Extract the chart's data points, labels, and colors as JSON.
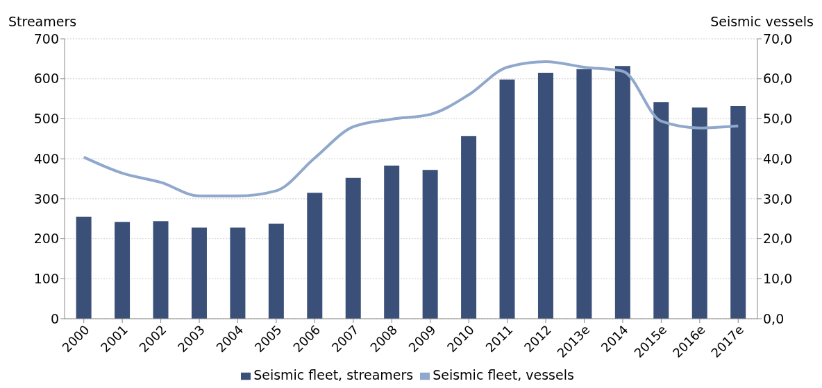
{
  "chart_data": {
    "type": "bar",
    "ylabel": "Streamers",
    "y2label": "Seismic vessels",
    "categories": [
      "2000",
      "2001",
      "2002",
      "2003",
      "2004",
      "2005",
      "2006",
      "2007",
      "2008",
      "2009",
      "2010",
      "2011",
      "2012",
      "2013e",
      "2014",
      "2015e",
      "2016e",
      "2017e"
    ],
    "series": [
      {
        "name": "Seismic fleet, streamers",
        "color": "#3a5078",
        "values": [
          255,
          242,
          244,
          228,
          228,
          238,
          315,
          352,
          383,
          372,
          457,
          598,
          615,
          624,
          632,
          542,
          528,
          532
        ]
      },
      {
        "name": "Seismic fleet, vessels",
        "type": "line",
        "axis": "y2",
        "color": "#8fa8cc",
        "values": [
          40.4,
          36.4,
          34.1,
          30.7,
          30.7,
          32,
          40.2,
          48,
          49.9,
          51.1,
          56,
          62.9,
          64.3,
          62.9,
          61.9,
          49.4,
          47.7,
          48.2
        ]
      }
    ],
    "ylim": [
      0,
      700
    ],
    "yticks": [
      0,
      100,
      200,
      300,
      400,
      500,
      600,
      700
    ],
    "y2lim": [
      0,
      70
    ],
    "y2ticks": [
      {
        "value": 0,
        "label": "0,0"
      },
      {
        "value": 10,
        "label": "10,0"
      },
      {
        "value": 20,
        "label": "20,0"
      },
      {
        "value": 30,
        "label": "30,0"
      },
      {
        "value": 40,
        "label": "40,0"
      },
      {
        "value": 50,
        "label": "50,0"
      },
      {
        "value": 60,
        "label": "60,0"
      },
      {
        "value": 70,
        "label": "70,0"
      }
    ],
    "grid": "y",
    "legend": "bottom",
    "marker": "none",
    "line_style": "solid"
  }
}
